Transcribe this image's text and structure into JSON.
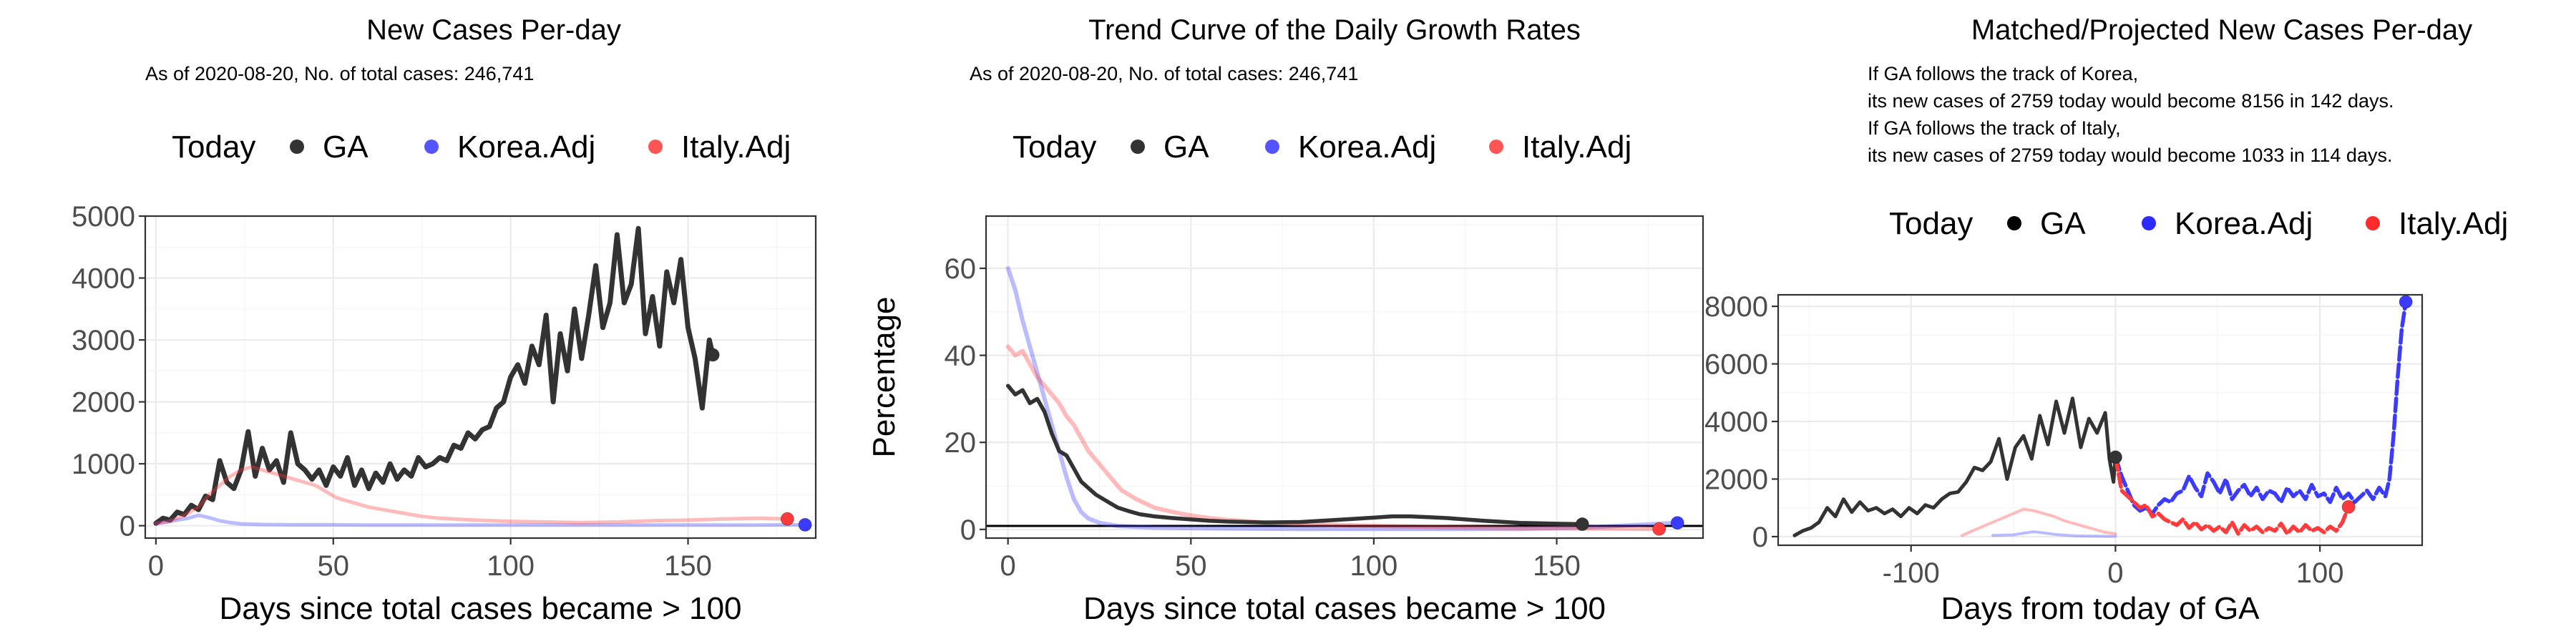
{
  "chart_data": [
    {
      "type": "line",
      "title": "New Cases Per-day",
      "subtitle": "As of 2020-08-20, No. of total cases: 246,741",
      "xlabel": "Days since total cases became > 100",
      "ylabel": "",
      "xlim": [
        -3,
        186
      ],
      "ylim": [
        -200,
        5000
      ],
      "xticks": [
        0,
        50,
        100,
        150
      ],
      "yticks": [
        0,
        1000,
        2000,
        3000,
        4000,
        5000
      ],
      "legend": {
        "title": "Today",
        "placement": "top",
        "entries": [
          "GA",
          "Korea.Adj",
          "Italy.Adj"
        ]
      },
      "grid": true,
      "series": [
        {
          "name": "GA",
          "color": "#333333",
          "opacity": 1,
          "width": 7,
          "x": [
            0,
            2,
            4,
            6,
            8,
            10,
            12,
            14,
            16,
            18,
            20,
            22,
            24,
            26,
            28,
            30,
            32,
            34,
            36,
            38,
            40,
            42,
            44,
            46,
            48,
            50,
            52,
            54,
            56,
            58,
            60,
            62,
            64,
            66,
            68,
            70,
            72,
            74,
            76,
            78,
            80,
            82,
            84,
            86,
            88,
            90,
            92,
            94,
            96,
            98,
            100,
            102,
            104,
            106,
            108,
            110,
            112,
            114,
            116,
            118,
            120,
            122,
            124,
            126,
            128,
            130,
            132,
            134,
            136,
            138,
            140,
            142,
            144,
            146,
            148,
            150,
            152,
            154,
            156,
            157
          ],
          "y": [
            40,
            120,
            90,
            220,
            180,
            330,
            260,
            480,
            420,
            1050,
            700,
            600,
            900,
            1520,
            800,
            1250,
            900,
            1050,
            700,
            1500,
            1000,
            900,
            750,
            900,
            650,
            950,
            800,
            1100,
            650,
            900,
            600,
            850,
            700,
            1000,
            750,
            900,
            800,
            1100,
            950,
            1000,
            1100,
            1050,
            1300,
            1250,
            1500,
            1400,
            1550,
            1600,
            1900,
            2000,
            2400,
            2600,
            2300,
            2900,
            2600,
            3400,
            2000,
            3100,
            2500,
            3500,
            2700,
            3400,
            4200,
            3200,
            3600,
            4700,
            3600,
            3900,
            4800,
            3100,
            3700,
            2900,
            4100,
            3600,
            4300,
            3200,
            2700,
            1900,
            3000,
            2759
          ],
          "end": {
            "x": 157,
            "y": 2759
          }
        },
        {
          "name": "Korea.Adj",
          "color": "#3b3bff",
          "opacity": 0.35,
          "width": 5,
          "x": [
            0,
            3,
            6,
            9,
            12,
            15,
            18,
            21,
            24,
            30,
            40,
            50,
            60,
            70,
            80,
            90,
            100,
            110,
            120,
            130,
            140,
            150,
            160,
            170,
            183
          ],
          "y": [
            30,
            60,
            90,
            120,
            170,
            130,
            80,
            50,
            30,
            20,
            15,
            15,
            10,
            10,
            10,
            10,
            10,
            10,
            10,
            10,
            10,
            10,
            10,
            10,
            15
          ],
          "end": {
            "x": 183,
            "y": 15
          }
        },
        {
          "name": "Italy.Adj",
          "color": "#ff3b3b",
          "opacity": 0.35,
          "width": 5,
          "x": [
            0,
            3,
            6,
            9,
            12,
            15,
            18,
            21,
            24,
            27,
            30,
            33,
            36,
            39,
            42,
            45,
            48,
            51,
            54,
            57,
            60,
            65,
            70,
            75,
            80,
            90,
            100,
            110,
            120,
            130,
            140,
            150,
            160,
            170,
            178
          ],
          "y": [
            40,
            60,
            120,
            200,
            300,
            500,
            650,
            800,
            900,
            950,
            900,
            850,
            800,
            750,
            700,
            650,
            550,
            450,
            400,
            350,
            300,
            250,
            200,
            150,
            120,
            90,
            70,
            60,
            50,
            60,
            80,
            90,
            110,
            120,
            110
          ],
          "end": {
            "x": 178,
            "y": 110
          }
        }
      ]
    },
    {
      "type": "line",
      "title": "Trend Curve of the Daily Growth Rates",
      "subtitle": "As of 2020-08-20, No. of total cases: 246,741",
      "xlabel": "Days since total cases became > 100",
      "ylabel": "Percentage",
      "xlim": [
        -6,
        190
      ],
      "ylim": [
        -2,
        72
      ],
      "xticks": [
        0,
        50,
        100,
        150
      ],
      "yticks": [
        0,
        20,
        40,
        60
      ],
      "hline": 0.8,
      "legend": {
        "title": "Today",
        "placement": "top",
        "entries": [
          "GA",
          "Korea.Adj",
          "Italy.Adj"
        ]
      },
      "grid": true,
      "series": [
        {
          "name": "Korea.Adj",
          "color": "#3b3bff",
          "opacity": 0.35,
          "width": 6,
          "x": [
            0,
            2,
            4,
            6,
            8,
            10,
            12,
            14,
            16,
            18,
            20,
            22,
            25,
            30,
            40,
            60,
            80,
            100,
            120,
            140,
            160,
            183
          ],
          "y": [
            60,
            55,
            48,
            42,
            36,
            30,
            24,
            18,
            12,
            7,
            4,
            2.5,
            1.5,
            0.8,
            0.4,
            0.2,
            0.1,
            0.1,
            0.1,
            0.1,
            0.5,
            1.5
          ],
          "end": {
            "x": 183,
            "y": 1.5
          }
        },
        {
          "name": "Italy.Adj",
          "color": "#ff3b3b",
          "opacity": 0.35,
          "width": 6,
          "x": [
            0,
            2,
            4,
            6,
            8,
            10,
            12,
            14,
            16,
            18,
            20,
            22,
            25,
            28,
            31,
            35,
            40,
            45,
            50,
            55,
            60,
            70,
            80,
            100,
            120,
            140,
            160,
            178
          ],
          "y": [
            42,
            40,
            41,
            38,
            35,
            33,
            31,
            29,
            26,
            24,
            21,
            18,
            15,
            12,
            9,
            7,
            5,
            4,
            3.2,
            2.6,
            2.2,
            1.6,
            1.2,
            0.8,
            0.5,
            0.3,
            0.2,
            0.1
          ],
          "end": {
            "x": 178,
            "y": 0.1
          }
        },
        {
          "name": "GA",
          "color": "#333333",
          "opacity": 1,
          "width": 5.5,
          "x": [
            0,
            2,
            4,
            6,
            8,
            10,
            12,
            14,
            16,
            18,
            20,
            22,
            24,
            26,
            28,
            30,
            33,
            36,
            40,
            45,
            50,
            55,
            60,
            70,
            80,
            90,
            100,
            105,
            110,
            115,
            120,
            125,
            130,
            140,
            150,
            157
          ],
          "y": [
            33,
            31,
            32,
            29,
            30,
            27,
            22,
            18,
            17,
            14,
            11,
            9.5,
            8,
            7,
            6,
            5,
            4.2,
            3.5,
            3,
            2.6,
            2.3,
            2,
            1.8,
            1.6,
            1.7,
            2.2,
            2.7,
            3,
            3,
            2.8,
            2.6,
            2.3,
            2,
            1.5,
            1.3,
            1.2
          ],
          "end": {
            "x": 157,
            "y": 1.2
          }
        }
      ]
    },
    {
      "type": "line",
      "title": "Matched/Projected New Cases Per-day",
      "annotation": [
        "If GA follows the track of Korea,",
        "its new cases of 2759 today would become 8156 in 142 days.",
        "If GA follows the track of Italy,",
        "its new cases of 2759 today would become 1033 in 114 days."
      ],
      "xlabel": "Days from today of GA",
      "ylabel": "",
      "xlim": [
        -165,
        150
      ],
      "ylim": [
        -300,
        8400
      ],
      "xticks": [
        -100,
        0,
        100
      ],
      "yticks": [
        0,
        2000,
        4000,
        6000,
        8000
      ],
      "legend": {
        "title": "Today",
        "placement": "top",
        "entries": [
          "GA",
          "Korea.Adj",
          "Italy.Adj"
        ]
      },
      "grid": true,
      "series": [
        {
          "name": "GA",
          "color": "#333333",
          "opacity": 1,
          "width": 5,
          "x": [
            -157,
            -153,
            -149,
            -145,
            -141,
            -137,
            -133,
            -129,
            -125,
            -121,
            -117,
            -113,
            -109,
            -105,
            -101,
            -97,
            -93,
            -89,
            -85,
            -81,
            -77,
            -73,
            -69,
            -65,
            -61,
            -57,
            -53,
            -49,
            -45,
            -41,
            -37,
            -33,
            -29,
            -25,
            -21,
            -17,
            -13,
            -9,
            -5,
            -3,
            -1,
            0
          ],
          "y": [
            40,
            200,
            300,
            500,
            1000,
            700,
            1300,
            850,
            1200,
            900,
            1000,
            800,
            950,
            700,
            1000,
            800,
            1100,
            1000,
            1300,
            1500,
            1550,
            1900,
            2400,
            2300,
            2600,
            3400,
            2000,
            3100,
            3500,
            2700,
            4200,
            3200,
            4700,
            3600,
            4800,
            3100,
            4100,
            3600,
            4300,
            2700,
            1900,
            2759
          ],
          "end": {
            "x": 0,
            "y": 2759
          }
        },
        {
          "name": "Korea.Adj",
          "color": "#3b3bff",
          "opacity": 0.35,
          "width": 4,
          "x": [
            -60,
            -50,
            -45,
            -40,
            -35,
            -30,
            -25,
            -20,
            -15,
            -10,
            -5,
            0
          ],
          "y": [
            40,
            60,
            120,
            170,
            130,
            80,
            50,
            30,
            20,
            15,
            10,
            10
          ]
        },
        {
          "name": "Italy.Adj",
          "color": "#ff3b3b",
          "opacity": 0.35,
          "width": 4,
          "x": [
            -75,
            -70,
            -60,
            -50,
            -45,
            -40,
            -35,
            -30,
            -25,
            -20,
            -15,
            -10,
            -5,
            0
          ],
          "y": [
            40,
            200,
            500,
            800,
            950,
            900,
            800,
            700,
            550,
            450,
            350,
            250,
            150,
            100
          ]
        },
        {
          "name": "Korea.Adj projected",
          "color": "#3b3bff",
          "opacity": 1,
          "width": 5.5,
          "dash": true,
          "x": [
            0,
            3,
            6,
            9,
            12,
            15,
            18,
            21,
            24,
            27,
            30,
            33,
            36,
            39,
            42,
            45,
            48,
            51,
            54,
            57,
            60,
            63,
            66,
            69,
            72,
            75,
            78,
            81,
            84,
            87,
            90,
            93,
            96,
            99,
            102,
            105,
            108,
            111,
            114,
            117,
            120,
            123,
            126,
            129,
            132,
            134,
            136,
            138,
            140,
            142
          ],
          "y": [
            2759,
            2100,
            1600,
            1100,
            900,
            1000,
            800,
            1100,
            1300,
            1200,
            1500,
            1600,
            2100,
            1700,
            1400,
            2200,
            1900,
            1500,
            2000,
            1300,
            1600,
            1800,
            1400,
            1700,
            1300,
            1600,
            1500,
            1200,
            1700,
            1400,
            1600,
            1300,
            1800,
            1400,
            1500,
            1200,
            1700,
            1300,
            1500,
            1200,
            1400,
            1600,
            1300,
            1700,
            1400,
            2000,
            3500,
            5500,
            7200,
            8156
          ],
          "end": {
            "x": 142,
            "y": 8156
          }
        },
        {
          "name": "Italy.Adj projected",
          "color": "#ff3b3b",
          "opacity": 1,
          "width": 5.5,
          "dash": true,
          "x": [
            0,
            3,
            6,
            9,
            12,
            15,
            18,
            21,
            24,
            27,
            30,
            33,
            36,
            39,
            42,
            45,
            48,
            51,
            54,
            57,
            60,
            63,
            66,
            69,
            72,
            75,
            78,
            81,
            84,
            87,
            90,
            93,
            96,
            99,
            102,
            105,
            108,
            111,
            114
          ],
          "y": [
            2759,
            1600,
            1400,
            1200,
            1000,
            1100,
            700,
            800,
            600,
            500,
            400,
            600,
            300,
            500,
            250,
            400,
            200,
            350,
            150,
            500,
            100,
            400,
            200,
            350,
            150,
            300,
            200,
            450,
            100,
            350,
            150,
            400,
            200,
            300,
            150,
            350,
            200,
            500,
            1033
          ],
          "end": {
            "x": 114,
            "y": 1033
          }
        }
      ]
    }
  ]
}
